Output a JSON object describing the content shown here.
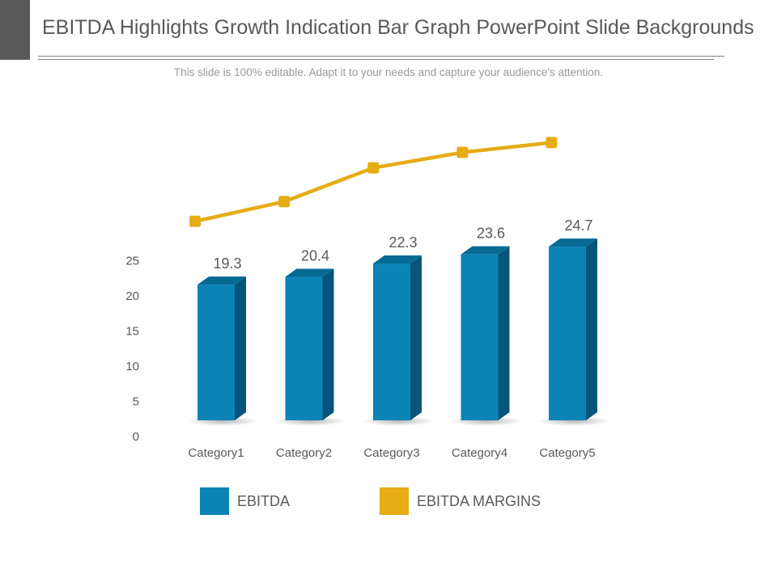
{
  "slide": {
    "title": "EBITDA Highlights Growth Indication Bar Graph PowerPoint Slide Backgrounds",
    "subtitle": "This slide is 100% editable. Adapt it to your needs and capture your audience's attention."
  },
  "colors": {
    "bar_front": "#0b84b5",
    "bar_side": "#07557a",
    "bar_top": "#066a95",
    "line": "#e6ac16",
    "text": "#595959"
  },
  "legend": [
    {
      "label": "EBITDA",
      "color": "#0b84b5"
    },
    {
      "label": "EBITDA MARGINS",
      "color": "#e6ac16"
    }
  ],
  "chart_data": {
    "type": "bar",
    "title": "",
    "xlabel": "",
    "ylabel": "",
    "categories": [
      "Category1",
      "Category2",
      "Category3",
      "Category4",
      "Category5"
    ],
    "y_ticks": [
      0,
      5,
      10,
      15,
      20,
      25
    ],
    "ylim": [
      0,
      25
    ],
    "series": [
      {
        "name": "EBITDA",
        "type": "bar",
        "values": [
          19.3,
          20.4,
          22.3,
          23.6,
          24.7
        ],
        "data_labels": [
          "19.3",
          "20.4",
          "22.3",
          "23.6",
          "24.7"
        ]
      },
      {
        "name": "EBITDA MARGINS",
        "type": "line",
        "values": [
          28.3,
          31.1,
          35.9,
          38.1,
          39.5
        ]
      }
    ],
    "legend_position": "bottom"
  }
}
